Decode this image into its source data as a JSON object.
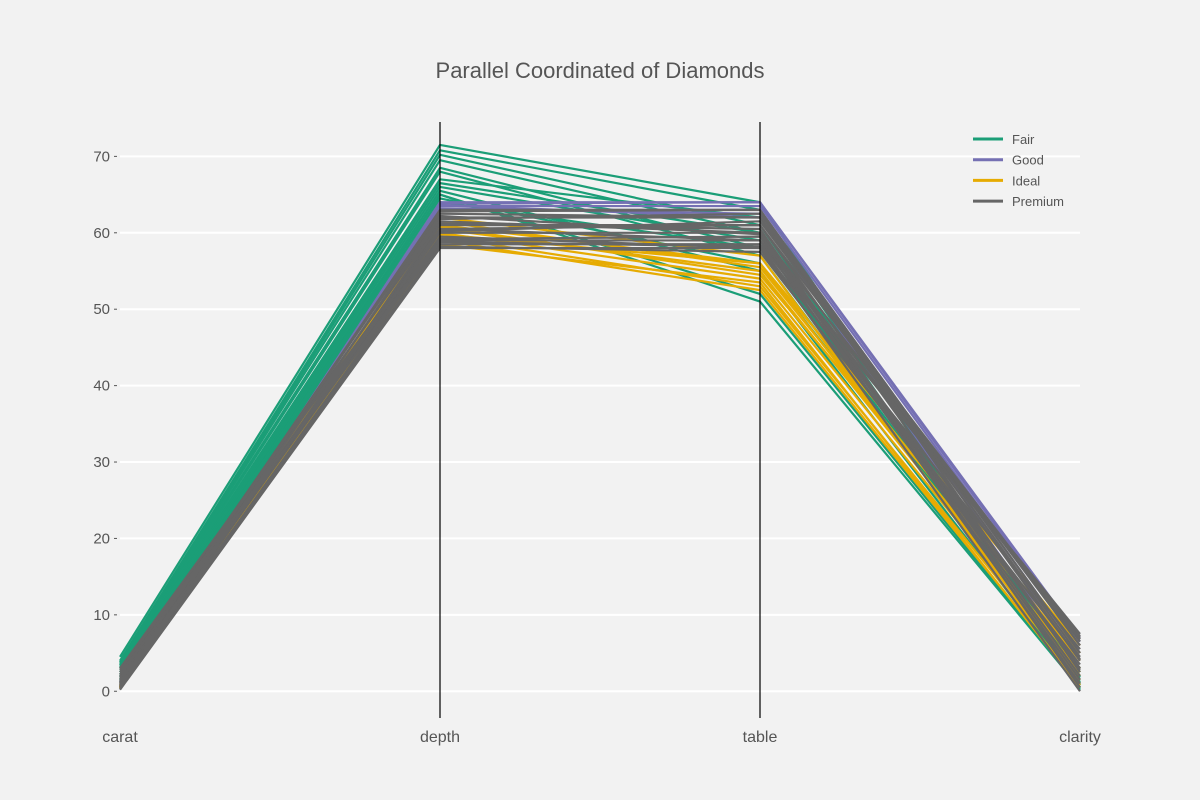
{
  "chart_data": {
    "type": "parallel_coordinates",
    "title": "Parallel Coordinated of Diamonds",
    "axes": [
      "carat",
      "depth",
      "table",
      "clarity"
    ],
    "ylim": [
      -3.5,
      74.5
    ],
    "yticks": [
      0,
      10,
      20,
      30,
      40,
      50,
      60,
      70
    ],
    "grid": true,
    "legend_position": "top-right",
    "series": [
      {
        "name": "Fair",
        "color": "#1b9e77",
        "lines": [
          [
            4.5,
            71.5,
            64.0,
            0.2
          ],
          [
            4.0,
            70.8,
            63.0,
            0.5
          ],
          [
            3.8,
            70.2,
            61.0,
            0.8
          ],
          [
            3.6,
            69.5,
            60.0,
            1.0
          ],
          [
            3.4,
            68.5,
            58.0,
            1.2
          ],
          [
            3.2,
            68.0,
            57.0,
            1.5
          ],
          [
            3.0,
            67.0,
            62.0,
            2.0
          ],
          [
            2.8,
            66.5,
            60.0,
            1.8
          ],
          [
            2.5,
            66.0,
            59.0,
            1.0
          ],
          [
            2.2,
            65.5,
            55.0,
            0.8
          ],
          [
            2.0,
            65.0,
            52.0,
            0.5
          ],
          [
            1.8,
            65.0,
            51.0,
            0.4
          ],
          [
            1.5,
            64.5,
            56.0,
            2.5
          ],
          [
            1.2,
            64.0,
            58.0,
            3.0
          ]
        ]
      },
      {
        "name": "Good",
        "color": "#7570b3",
        "lines": [
          [
            0.3,
            64.0,
            64.0,
            7.0
          ],
          [
            0.5,
            63.8,
            64.0,
            6.5
          ],
          [
            0.8,
            63.5,
            63.5,
            6.0
          ],
          [
            1.0,
            63.0,
            63.0,
            5.0
          ],
          [
            1.2,
            63.2,
            62.5,
            4.0
          ],
          [
            0.6,
            63.6,
            62.0,
            3.0
          ]
        ]
      },
      {
        "name": "Ideal",
        "color": "#e6ab02",
        "lines": [
          [
            0.3,
            62.0,
            57.0,
            1.0
          ],
          [
            0.4,
            61.0,
            56.0,
            2.0
          ],
          [
            0.5,
            60.5,
            55.0,
            3.0
          ],
          [
            0.6,
            60.0,
            54.0,
            2.5
          ],
          [
            0.7,
            59.5,
            53.0,
            1.5
          ],
          [
            0.8,
            59.0,
            52.5,
            0.8
          ],
          [
            1.0,
            58.5,
            53.5,
            0.5
          ],
          [
            0.35,
            61.5,
            55.5,
            4.0
          ],
          [
            0.45,
            60.8,
            54.5,
            5.0
          ],
          [
            0.55,
            59.8,
            56.0,
            6.0
          ]
        ]
      },
      {
        "name": "Premium",
        "color": "#666666",
        "lines": [
          [
            0.2,
            58.0,
            58.0,
            0.0
          ],
          [
            0.5,
            59.0,
            59.0,
            1.0
          ],
          [
            0.8,
            60.0,
            60.0,
            2.0
          ],
          [
            1.0,
            61.0,
            61.0,
            3.0
          ],
          [
            1.3,
            62.0,
            62.0,
            4.0
          ],
          [
            1.6,
            63.0,
            63.0,
            5.0
          ],
          [
            2.0,
            62.5,
            62.0,
            6.0
          ],
          [
            2.5,
            61.5,
            60.0,
            7.0
          ],
          [
            3.0,
            60.5,
            59.0,
            7.5
          ],
          [
            0.3,
            58.5,
            58.5,
            7.2
          ],
          [
            0.6,
            60.5,
            61.0,
            6.5
          ],
          [
            1.1,
            59.5,
            58.0,
            5.5
          ],
          [
            1.8,
            61.8,
            62.5,
            4.5
          ],
          [
            0.9,
            58.2,
            57.5,
            3.5
          ],
          [
            1.4,
            62.8,
            63.0,
            2.5
          ],
          [
            2.2,
            59.2,
            59.5,
            1.5
          ],
          [
            0.4,
            61.2,
            60.5,
            0.5
          ],
          [
            1.2,
            60.2,
            61.5,
            6.8
          ],
          [
            0.7,
            62.2,
            59.8,
            2.8
          ],
          [
            2.8,
            58.8,
            58.2,
            4.2
          ]
        ]
      }
    ]
  }
}
